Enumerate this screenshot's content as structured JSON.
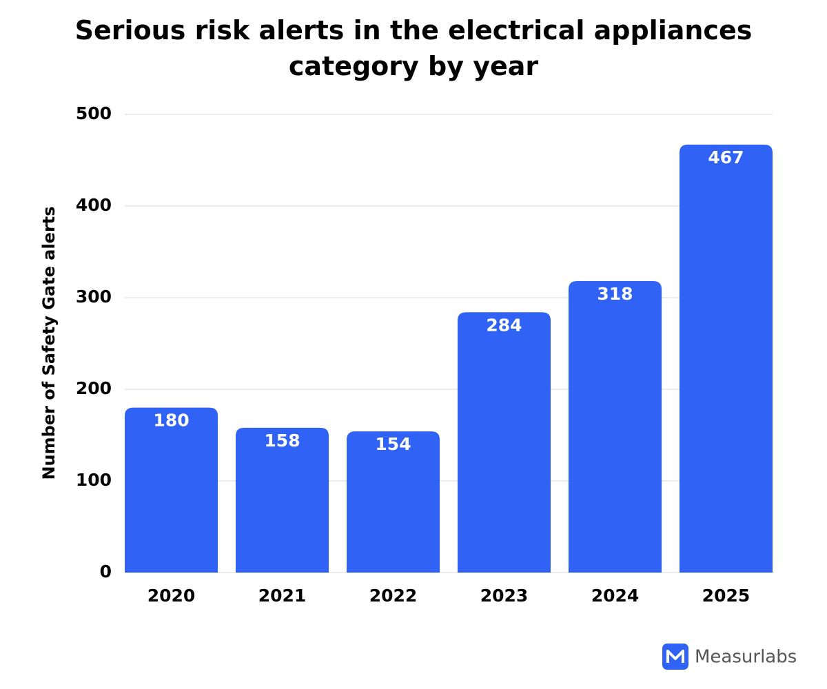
{
  "chart_data": {
    "type": "bar",
    "title": "Serious risk alerts in the electrical appliances category by year",
    "y_label": "Number of Safety Gate alerts",
    "categories": [
      "2020",
      "2021",
      "2022",
      "2023",
      "2024",
      "2025"
    ],
    "values": [
      180,
      158,
      154,
      284,
      318,
      467
    ],
    "color": "#2f62f5",
    "ylim": [
      0,
      500
    ],
    "yticks": [
      0,
      100,
      200,
      300,
      400,
      500
    ],
    "grid": true,
    "show_value_labels": true,
    "brand": "Measurlabs"
  }
}
